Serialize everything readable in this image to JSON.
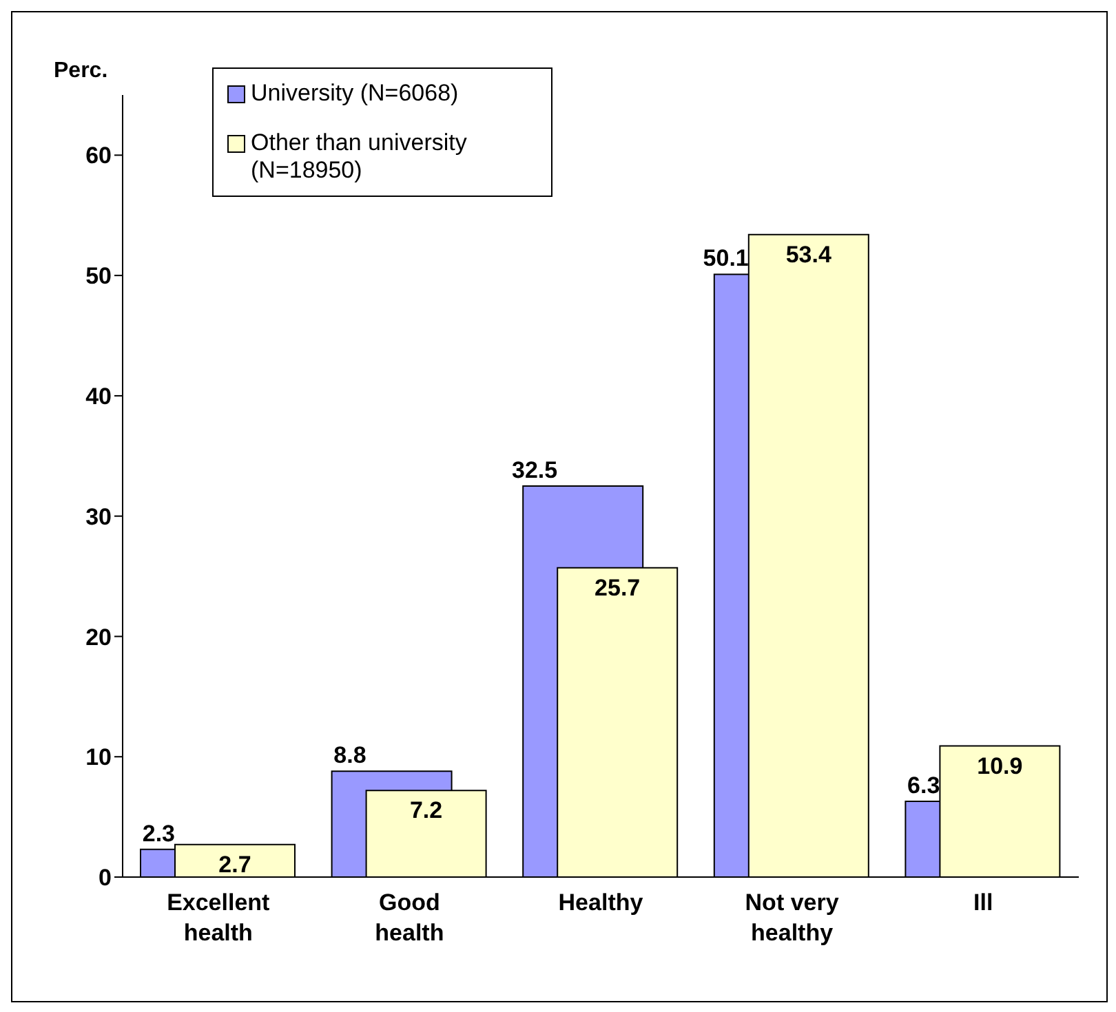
{
  "chart_data": {
    "type": "bar",
    "ylabel": "Perc.",
    "categories": [
      "Excellent health",
      "Good health",
      "Healthy",
      "Not very healthy",
      "Ill"
    ],
    "series": [
      {
        "name": "University (N=6068)",
        "color": "#9999ff",
        "values": [
          2.3,
          8.8,
          32.5,
          50.1,
          6.3
        ]
      },
      {
        "name": "Other than university (N=18950)",
        "color": "#ffffcc",
        "values": [
          2.7,
          7.2,
          25.7,
          53.4,
          10.9
        ]
      }
    ],
    "ylim": [
      0,
      65
    ],
    "yticks": [
      0,
      10,
      20,
      30,
      40,
      50,
      60
    ],
    "grid": false,
    "legend": "top left",
    "data_labels": true
  }
}
